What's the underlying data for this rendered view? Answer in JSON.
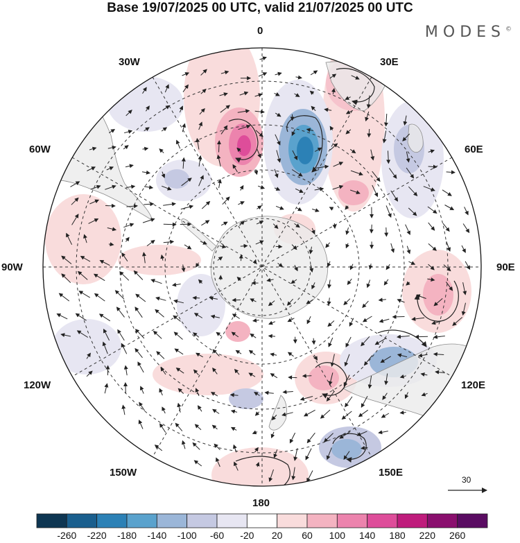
{
  "header": {
    "title": "Base 19/07/2025 00 UTC, valid 21/07/2025 00 UTC",
    "brand": "MODES",
    "brand_mark": "©"
  },
  "map": {
    "projection": "south polar stereographic",
    "longitude_labels": {
      "lon_0": "0",
      "lon_30e": "30E",
      "lon_60e": "60E",
      "lon_90e": "90E",
      "lon_120e": "120E",
      "lon_150e": "150E",
      "lon_180": "180",
      "lon_150w": "150W",
      "lon_120w": "120W",
      "lon_90w": "90W",
      "lon_60w": "60W",
      "lon_30w": "30W"
    },
    "vector_scale_label": "30"
  },
  "colorbar": {
    "ticks": [
      "-260",
      "-220",
      "-180",
      "-140",
      "-100",
      "-60",
      "-20",
      "20",
      "60",
      "100",
      "140",
      "180",
      "220",
      "260"
    ],
    "colors": [
      "#0e3652",
      "#1a5f8e",
      "#2c81b6",
      "#5aa2cd",
      "#9bb6d8",
      "#c5c9e2",
      "#e7e6f2",
      "#ffffff",
      "#f9dcdc",
      "#f4b3c1",
      "#ec83ad",
      "#de4d9a",
      "#bf1c7c",
      "#8a0f6e",
      "#5a0c62"
    ]
  },
  "colors": {
    "land": "#ebebeb",
    "coast": "#8c8c8c",
    "grid": "#333333",
    "outline": "#111111"
  }
}
